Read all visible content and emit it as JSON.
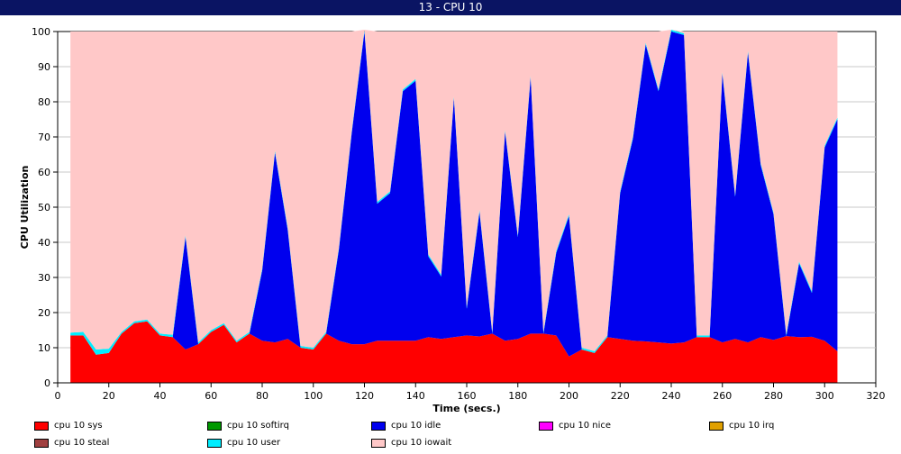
{
  "window": {
    "title": "13 - CPU 10"
  },
  "chart_data": {
    "type": "area",
    "stacked": true,
    "xlabel": "Time (secs.)",
    "ylabel": "CPU Utilization",
    "xlim": [
      0,
      320
    ],
    "ylim": [
      0,
      100
    ],
    "xticks": [
      0,
      20,
      40,
      60,
      80,
      100,
      120,
      140,
      160,
      180,
      200,
      220,
      240,
      260,
      280,
      300,
      320
    ],
    "yticks": [
      0,
      10,
      20,
      30,
      40,
      50,
      60,
      70,
      80,
      90,
      100
    ],
    "grid": true,
    "legend_position": "bottom",
    "x": [
      5,
      10,
      15,
      20,
      25,
      30,
      35,
      40,
      45,
      50,
      55,
      60,
      65,
      70,
      75,
      80,
      85,
      90,
      95,
      100,
      105,
      110,
      115,
      120,
      125,
      130,
      135,
      140,
      145,
      150,
      155,
      160,
      165,
      170,
      175,
      180,
      185,
      190,
      195,
      200,
      205,
      210,
      215,
      220,
      225,
      230,
      235,
      240,
      245,
      250,
      255,
      260,
      265,
      270,
      275,
      280,
      285,
      290,
      295,
      300,
      305
    ],
    "series": [
      {
        "name": "cpu 10 sys",
        "color": "#ff0000",
        "values": [
          13.5,
          13.5,
          8,
          8.5,
          14,
          17,
          17.5,
          13.5,
          13,
          9.5,
          11,
          14.5,
          16.5,
          11.5,
          14,
          12,
          11.5,
          12.5,
          10,
          9.5,
          14,
          12,
          11,
          11,
          12,
          12,
          12,
          12,
          13,
          12.5,
          13,
          13.5,
          13.2,
          14,
          12,
          12.5,
          14,
          14,
          13.5,
          7.5,
          9.5,
          8.5,
          13,
          12.5,
          12,
          11.8,
          11.5,
          11.2,
          11.5,
          13,
          13,
          11.5,
          12.5,
          11.5,
          13,
          12.2,
          13.3,
          13,
          13.1,
          12,
          9
        ]
      },
      {
        "name": "cpu 10 softirq",
        "color": "#009900",
        "values": [
          0,
          0,
          0,
          0,
          0,
          0,
          0,
          0,
          0,
          0,
          0,
          0,
          0,
          0,
          0,
          0,
          0,
          0,
          0,
          0,
          0,
          0,
          0,
          0,
          0,
          0,
          0,
          0,
          0,
          0,
          0,
          0,
          0,
          0,
          0,
          0,
          0,
          0,
          0,
          0,
          0,
          0,
          0,
          0,
          0,
          0,
          0,
          0,
          0,
          0,
          0,
          0,
          0,
          0,
          0,
          0,
          0,
          0,
          0,
          0,
          0
        ]
      },
      {
        "name": "cpu 10 idle",
        "color": "#0000ee",
        "values": [
          0,
          0,
          0,
          0,
          0,
          0,
          0,
          0,
          0,
          32,
          0,
          0,
          0,
          0,
          0,
          20,
          54,
          31,
          0,
          0,
          0,
          26,
          60,
          89,
          39,
          42,
          71,
          74,
          23,
          17.8,
          68,
          7.6,
          35.5,
          0,
          59.5,
          29,
          73,
          0,
          23.5,
          40,
          0,
          0,
          0,
          41.5,
          57.5,
          84.5,
          71.5,
          88.8,
          87.5,
          0,
          0,
          76.5,
          40.5,
          82.5,
          49,
          35.8,
          0,
          21,
          12.5,
          55,
          66
        ]
      },
      {
        "name": "cpu 10 nice",
        "color": "#ff00ff",
        "values": [
          0,
          0,
          0,
          0,
          0,
          0,
          0,
          0,
          0,
          0,
          0,
          0,
          0,
          0,
          0,
          0,
          0,
          0,
          0,
          0,
          0,
          0,
          0,
          0,
          0,
          0,
          0,
          0,
          0,
          0,
          0,
          0,
          0,
          0,
          0,
          0,
          0,
          0,
          0,
          0,
          0,
          0,
          0,
          0,
          0,
          0,
          0,
          0,
          0,
          0,
          0,
          0,
          0,
          0,
          0,
          0,
          0,
          0,
          0,
          0,
          0
        ]
      },
      {
        "name": "cpu 10 irq",
        "color": "#e0a000",
        "values": [
          0,
          0,
          0,
          0,
          0,
          0,
          0,
          0,
          0,
          0,
          0,
          0,
          0,
          0,
          0,
          0,
          0,
          0,
          0,
          0,
          0,
          0,
          0,
          0,
          0,
          0,
          0,
          0,
          0,
          0,
          0,
          0,
          0,
          0,
          0,
          0,
          0,
          0,
          0,
          0,
          0,
          0,
          0,
          0,
          0,
          0,
          0,
          0,
          0,
          0,
          0,
          0,
          0,
          0,
          0,
          0,
          0,
          0,
          0,
          0,
          0
        ]
      },
      {
        "name": "cpu 10 steal",
        "color": "#a04040",
        "values": [
          0,
          0,
          0,
          0,
          0,
          0,
          0,
          0,
          0,
          0,
          0,
          0,
          0,
          0,
          0,
          0,
          0,
          0,
          0,
          0,
          0,
          0,
          0,
          0,
          0,
          0,
          0,
          0,
          0,
          0,
          0,
          0,
          0,
          0,
          0,
          0,
          0,
          0,
          0,
          0,
          0,
          0,
          0,
          0,
          0,
          0,
          0,
          0,
          0,
          0,
          0,
          0,
          0,
          0,
          0,
          0,
          0,
          0,
          0,
          0,
          0
        ]
      },
      {
        "name": "cpu 10 user",
        "color": "#00eeff",
        "values": [
          0.8,
          1,
          1.5,
          1.2,
          0.5,
          0.5,
          0.5,
          0.5,
          0.7,
          0.5,
          0.5,
          0.5,
          0.5,
          0.5,
          0.5,
          0.5,
          0.5,
          0.5,
          0.5,
          0.5,
          0.5,
          0.5,
          0.5,
          0.5,
          0.5,
          0.5,
          0.5,
          0.5,
          0.5,
          0.5,
          0.5,
          0.5,
          0.5,
          0.5,
          0.5,
          0.5,
          0.5,
          0.5,
          0.5,
          0.5,
          0.5,
          0.5,
          0.5,
          0.5,
          0.5,
          0.5,
          0.5,
          0.5,
          0.5,
          0.5,
          0.5,
          0.5,
          0.5,
          0.5,
          0.5,
          0.5,
          0.5,
          0.5,
          0.5,
          0.5,
          0.5
        ]
      },
      {
        "name": "cpu 10 iowait",
        "color": "#ffc8c8",
        "values": [
          85.7,
          85.5,
          90.5,
          90.3,
          85.5,
          82.5,
          82,
          86,
          86.3,
          58,
          88.5,
          85,
          83,
          88,
          85.5,
          67.5,
          34,
          56,
          89.5,
          90,
          85.5,
          61.5,
          28.5,
          0,
          48.5,
          45.5,
          16.5,
          13.5,
          63.5,
          69.2,
          18.5,
          78.4,
          50.8,
          85.5,
          28,
          58,
          12.5,
          85.5,
          62.5,
          52,
          90,
          91,
          86.5,
          45.5,
          30,
          3.2,
          16.5,
          0,
          0.5,
          86.5,
          86.5,
          11.5,
          46.5,
          5.5,
          37.5,
          51.5,
          86.2,
          65.5,
          73.9,
          32.5,
          24.5
        ]
      }
    ]
  }
}
